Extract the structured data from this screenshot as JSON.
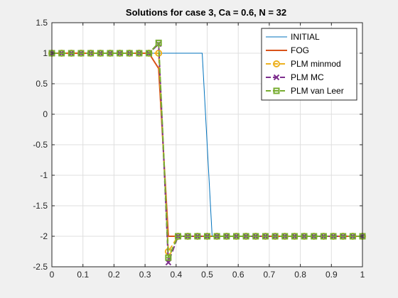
{
  "chart_data": {
    "type": "line",
    "title": "Solutions for case 3, Ca = 0.6, N = 32",
    "xlabel": "",
    "ylabel": "",
    "xlim": [
      0,
      1
    ],
    "ylim": [
      -2.5,
      1.5
    ],
    "xticks": [
      0,
      0.1,
      0.2,
      0.3,
      0.4,
      0.5,
      0.6,
      0.7,
      0.8,
      0.9,
      1
    ],
    "xtick_labels": [
      "0",
      "0.1",
      "0.2",
      "0.3",
      "0.4",
      "0.5",
      "0.6",
      "0.7",
      "0.8",
      "0.9",
      "1"
    ],
    "yticks": [
      1.5,
      1,
      0.5,
      0,
      -0.5,
      -1,
      -1.5,
      -2,
      -2.5
    ],
    "ytick_labels": [
      "1.5",
      "1",
      "0.5",
      "0",
      "-0.5",
      "-1",
      "-1.5",
      "-2",
      "-2.5"
    ],
    "grid": true,
    "legend_position": "top-right",
    "x": [
      0,
      0.03125,
      0.0625,
      0.09375,
      0.125,
      0.15625,
      0.1875,
      0.21875,
      0.25,
      0.28125,
      0.3125,
      0.34375,
      0.375,
      0.40625,
      0.4375,
      0.46875,
      0.5,
      0.53125,
      0.5625,
      0.59375,
      0.625,
      0.65625,
      0.6875,
      0.71875,
      0.75,
      0.78125,
      0.8125,
      0.84375,
      0.875,
      0.90625,
      0.9375,
      0.96875,
      1
    ],
    "series": [
      {
        "name": "INITIAL",
        "color": "#0072bd",
        "style": "solid",
        "marker": "none",
        "x": [
          0,
          0.484,
          0.516,
          1
        ],
        "values": [
          1,
          1,
          -2,
          -2
        ]
      },
      {
        "name": "FOG",
        "color": "#d95319",
        "style": "solid",
        "marker": "none",
        "values": [
          1,
          1,
          1,
          1,
          1,
          1,
          1,
          1,
          1,
          1,
          1,
          0.75,
          -2,
          -2,
          -2,
          -2,
          -2,
          -2,
          -2,
          -2,
          -2,
          -2,
          -2,
          -2,
          -2,
          -2,
          -2,
          -2,
          -2,
          -2,
          -2,
          -2,
          -2
        ]
      },
      {
        "name": "PLM minmod",
        "color": "#edb120",
        "style": "dashed",
        "marker": "circle",
        "values": [
          1,
          1,
          1,
          1,
          1,
          1,
          1,
          1,
          1,
          1,
          1,
          1,
          -2.25,
          -2,
          -2,
          -2,
          -2,
          -2,
          -2,
          -2,
          -2,
          -2,
          -2,
          -2,
          -2,
          -2,
          -2,
          -2,
          -2,
          -2,
          -2,
          -2,
          -2
        ]
      },
      {
        "name": "PLM MC",
        "color": "#7e2f8e",
        "style": "dashed",
        "marker": "x",
        "values": [
          1,
          1,
          1,
          1,
          1,
          1,
          1,
          1,
          1,
          1,
          1,
          1.15,
          -2.43,
          -2,
          -2,
          -2,
          -2,
          -2,
          -2,
          -2,
          -2,
          -2,
          -2,
          -2,
          -2,
          -2,
          -2,
          -2,
          -2,
          -2,
          -2,
          -2,
          -2
        ]
      },
      {
        "name": "PLM van Leer",
        "color": "#77ac30",
        "style": "dashed",
        "marker": "square",
        "values": [
          1,
          1,
          1,
          1,
          1,
          1,
          1,
          1,
          1,
          1,
          1,
          1.17,
          -2.35,
          -2,
          -2,
          -2,
          -2,
          -2,
          -2,
          -2,
          -2,
          -2,
          -2,
          -2,
          -2,
          -2,
          -2,
          -2,
          -2,
          -2,
          -2,
          -2,
          -2
        ]
      }
    ]
  }
}
